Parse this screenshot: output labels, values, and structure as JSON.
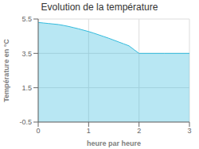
{
  "chart_data": {
    "type": "area",
    "title": "Evolution de la température",
    "xlabel": "heure par heure",
    "ylabel": "Température en °C",
    "x": [
      0,
      0.1,
      0.2,
      0.3,
      0.4,
      0.5,
      0.6,
      0.7,
      0.8,
      0.9,
      1.0,
      1.1,
      1.2,
      1.3,
      1.4,
      1.5,
      1.6,
      1.7,
      1.8,
      1.9,
      2.0,
      2.5,
      3.0
    ],
    "values": [
      5.3,
      5.27,
      5.24,
      5.21,
      5.18,
      5.13,
      5.07,
      5.0,
      4.93,
      4.85,
      4.77,
      4.68,
      4.58,
      4.48,
      4.38,
      4.27,
      4.16,
      4.05,
      3.94,
      3.72,
      3.5,
      3.5,
      3.5
    ],
    "color": "#33bbdd",
    "xlim": [
      0,
      3
    ],
    "ylim": [
      -0.5,
      5.5
    ],
    "xticks": [
      0,
      1,
      2,
      3
    ],
    "yticks": [
      -0.5,
      1.5,
      3.5,
      5.5
    ],
    "grid": true
  }
}
